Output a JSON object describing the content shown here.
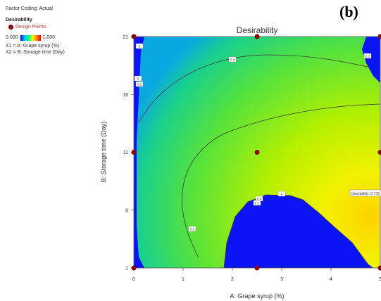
{
  "panel_label": "(b)",
  "legend": {
    "factor_coding": "Factor Coding: Actual",
    "response": "Desirability",
    "design_points": "Design Points",
    "scale_min": "0.000",
    "scale_max": "1.000",
    "x1": "X1 = A: Grape syrup (%)",
    "x2": "X2 = B: Storage time (Day)"
  },
  "chart_data": {
    "type": "contour",
    "title": "Desirability",
    "xlabel": "A: Grape syrup (%)",
    "ylabel": "B: Storage time (Day)",
    "xlim": [
      0,
      5
    ],
    "ylim": [
      1,
      21
    ],
    "x_ticks": [
      "0",
      "1",
      "2",
      "3",
      "4",
      "5"
    ],
    "y_ticks": [
      "1",
      "6",
      "11",
      "16",
      "21"
    ],
    "colorscale": [
      "#0000ff",
      "#00c0ff",
      "#00ff80",
      "#ffff00",
      "#ff8000",
      "#ff0000"
    ],
    "colorscale_range": [
      0,
      1
    ],
    "design_points": [
      {
        "x": 0,
        "y": 1
      },
      {
        "x": 2.5,
        "y": 1
      },
      {
        "x": 5,
        "y": 1
      },
      {
        "x": 0,
        "y": 11
      },
      {
        "x": 2.5,
        "y": 11
      },
      {
        "x": 5,
        "y": 11
      },
      {
        "x": 0,
        "y": 21
      },
      {
        "x": 2.5,
        "y": 21
      },
      {
        "x": 5,
        "y": 21
      }
    ],
    "optimum_annotation": "Desirability: 0.779",
    "contour_labels": [
      "0",
      "0.2",
      "0.4",
      "0.6"
    ],
    "grid": false
  }
}
